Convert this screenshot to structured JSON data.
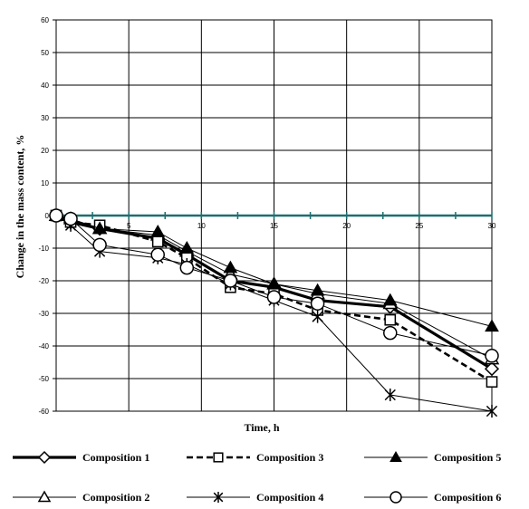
{
  "chart_data": {
    "type": "line",
    "xlabel": "Time, h",
    "ylabel": "Change in the mass content, %",
    "xlim": [
      0,
      30
    ],
    "ylim": [
      -60,
      60
    ],
    "x_ticks": [
      5,
      10,
      15,
      20,
      25,
      30
    ],
    "y_ticks": [
      60,
      50,
      40,
      30,
      20,
      10,
      0,
      -10,
      -20,
      -30,
      -40,
      -50,
      -60
    ],
    "grid": true,
    "legend_position": "bottom",
    "zero_line_color": "#1f6e6e",
    "series": [
      {
        "name": "Composition 1",
        "marker": "diamond",
        "line": "thick",
        "x": [
          0,
          1,
          3,
          7,
          9,
          12,
          15,
          18,
          23,
          30
        ],
        "y": [
          0,
          -2,
          -4,
          -7,
          -12,
          -20,
          -22,
          -26,
          -28,
          -47
        ]
      },
      {
        "name": "Composition 2",
        "marker": "triangle-open",
        "line": "thin",
        "x": [
          0,
          1,
          3,
          7,
          9,
          12,
          15,
          18,
          23,
          30
        ],
        "y": [
          0,
          -1,
          -4,
          -6,
          -11,
          -18,
          -21,
          -24,
          -27,
          -44
        ]
      },
      {
        "name": "Composition 3",
        "marker": "square",
        "line": "dashed",
        "x": [
          0,
          1,
          3,
          7,
          9,
          12,
          15,
          18,
          23,
          30
        ],
        "y": [
          0,
          -2,
          -3,
          -8,
          -13,
          -22,
          -24,
          -29,
          -32,
          -51
        ]
      },
      {
        "name": "Composition 4",
        "marker": "star",
        "line": "thin",
        "x": [
          0,
          1,
          3,
          7,
          9,
          12,
          15,
          18,
          23,
          30
        ],
        "y": [
          0,
          -3,
          -11,
          -13,
          -15,
          -21,
          -26,
          -31,
          -55,
          -60
        ]
      },
      {
        "name": "Composition 5",
        "marker": "triangle-filled",
        "line": "thin",
        "x": [
          0,
          1,
          3,
          7,
          9,
          12,
          15,
          18,
          23,
          30
        ],
        "y": [
          0,
          -1,
          -4,
          -5,
          -10,
          -16,
          -21,
          -23,
          -26,
          -34
        ]
      },
      {
        "name": "Composition 6",
        "marker": "circle",
        "line": "thin",
        "x": [
          0,
          1,
          3,
          7,
          9,
          12,
          15,
          18,
          23,
          30
        ],
        "y": [
          0,
          -1,
          -9,
          -12,
          -16,
          -20,
          -25,
          -27,
          -36,
          -43
        ]
      }
    ]
  }
}
